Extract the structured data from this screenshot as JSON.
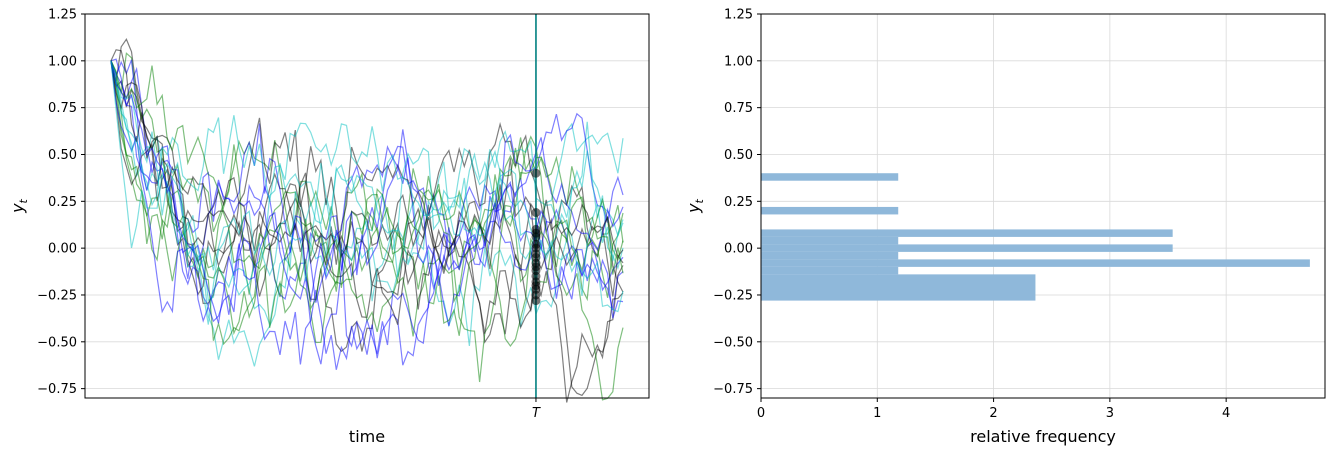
{
  "chart_data": [
    {
      "type": "line",
      "panel": "left",
      "title": "",
      "xlabel": "time",
      "ylabel": "y_t",
      "ylim": [
        -0.8,
        1.25
      ],
      "yticks": [
        1.25,
        1.0,
        0.75,
        0.5,
        0.25,
        0.0,
        -0.25,
        -0.5,
        -0.75
      ],
      "ytick_labels": [
        "1.25",
        "1.00",
        "0.75",
        "0.50",
        "0.25",
        "0.00",
        "−0.25",
        "−0.50",
        "−0.75"
      ],
      "xtick_labels": [
        "T"
      ],
      "grid": "horizontal",
      "num_series": 20,
      "start_value": 1.0,
      "long_run_mean": 0.0,
      "vertical_line_label": "T",
      "series_colors": [
        "#000000",
        "#008000",
        "#0000ff",
        "#00bfbf"
      ],
      "highlight_points_at_T": [
        0.4,
        0.19,
        0.1,
        0.08,
        0.06,
        0.02,
        0.0,
        -0.03,
        -0.05,
        -0.08,
        -0.1,
        -0.12,
        -0.15,
        -0.18,
        -0.2,
        -0.22,
        -0.25,
        -0.28
      ]
    },
    {
      "type": "bar",
      "orientation": "horizontal",
      "panel": "right",
      "title": "",
      "xlabel": "relative frequency",
      "ylabel": "y_t",
      "ylim": [
        -0.8,
        1.25
      ],
      "xlim": [
        0,
        4.85
      ],
      "xticks": [
        0,
        1,
        2,
        3,
        4
      ],
      "xtick_labels": [
        "0",
        "1",
        "2",
        "3",
        "4"
      ],
      "yticks": [
        1.25,
        1.0,
        0.75,
        0.5,
        0.25,
        0.0,
        -0.25,
        -0.5,
        -0.75
      ],
      "ytick_labels": [
        "1.25",
        "1.00",
        "0.75",
        "0.50",
        "0.25",
        "0.00",
        "−0.25",
        "−0.50",
        "−0.75"
      ],
      "grid": "both",
      "bar_color": "#8fb8da",
      "bins": [
        {
          "low": 0.36,
          "high": 0.4,
          "value": 1.18
        },
        {
          "low": 0.18,
          "high": 0.22,
          "value": 1.18
        },
        {
          "low": 0.06,
          "high": 0.1,
          "value": 3.54
        },
        {
          "low": 0.02,
          "high": 0.06,
          "value": 1.18
        },
        {
          "low": -0.02,
          "high": 0.02,
          "value": 3.54
        },
        {
          "low": -0.06,
          "high": -0.02,
          "value": 1.18
        },
        {
          "low": -0.1,
          "high": -0.06,
          "value": 4.72
        },
        {
          "low": -0.14,
          "high": -0.1,
          "value": 1.18
        },
        {
          "low": -0.28,
          "high": -0.14,
          "value": 2.36
        }
      ]
    }
  ]
}
